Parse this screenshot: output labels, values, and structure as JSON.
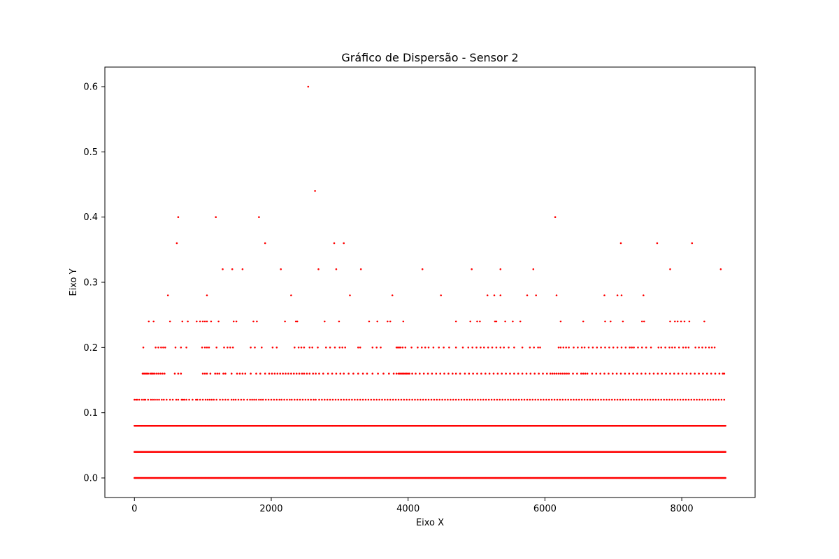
{
  "chart_data": {
    "type": "scatter",
    "title": "Gráfico de Dispersão - Sensor 2",
    "xlabel": "Eixo X",
    "ylabel": "Eixo Y",
    "xlim": [
      -432,
      9072
    ],
    "ylim": [
      -0.03,
      0.63
    ],
    "x_ticks": [
      0,
      2000,
      4000,
      6000,
      8000
    ],
    "x_tick_labels": [
      "0",
      "2000",
      "4000",
      "6000",
      "8000"
    ],
    "y_ticks": [
      0.0,
      0.1,
      0.2,
      0.3,
      0.4,
      0.5,
      0.6
    ],
    "y_tick_labels": [
      "0.0",
      "0.1",
      "0.2",
      "0.3",
      "0.4",
      "0.5",
      "0.6"
    ],
    "grid": false,
    "legend": "none",
    "marker_color": "#ff0000",
    "series": [
      {
        "levels": [
          0.0,
          0.04,
          0.08
        ],
        "x_range": [
          0,
          8640
        ]
      },
      {
        "y": 0.12,
        "x": [
          0,
          25,
          40,
          70,
          110,
          140,
          160,
          200,
          240,
          270,
          300,
          330,
          360,
          400,
          430,
          470,
          520,
          560,
          610,
          640,
          690,
          710,
          730,
          760,
          800,
          850,
          900,
          920,
          960,
          1000,
          1040,
          1070,
          1100,
          1130,
          1160,
          1200,
          1250,
          1290,
          1330,
          1370,
          1420,
          1450,
          1480,
          1520,
          1560,
          1600,
          1650,
          1690,
          1720,
          1750,
          1780,
          1820,
          1850,
          1880,
          1920,
          1960,
          2000,
          2040,
          2080,
          2120,
          2150,
          2190,
          2230,
          2270,
          2300,
          2340,
          2380,
          2420,
          2460,
          2500,
          2540,
          2580,
          2620,
          2650,
          2700,
          2740,
          2780,
          2820,
          2860,
          2900,
          2940,
          2980,
          3020,
          3060,
          3100,
          3140,
          3180,
          3220,
          3260,
          3300,
          3340,
          3380,
          3420,
          3460,
          3500,
          3540,
          3580,
          3620,
          3660,
          3700,
          3740,
          3780,
          3820,
          3860,
          3900,
          3940,
          3980,
          4020,
          4060,
          4100,
          4140,
          4180,
          4220,
          4260,
          4300,
          4340,
          4380,
          4420,
          4460,
          4500,
          4540,
          4580,
          4620,
          4660,
          4700,
          4740,
          4780,
          4820,
          4860,
          4900,
          4940,
          4980,
          5020,
          5060,
          5100,
          5140,
          5180,
          5220,
          5260,
          5300,
          5340,
          5380,
          5420,
          5460,
          5500,
          5540,
          5580,
          5620,
          5660,
          5700,
          5740,
          5780,
          5820,
          5860,
          5900,
          5940,
          5980,
          6020,
          6060,
          6100,
          6140,
          6180,
          6220,
          6260,
          6300,
          6340,
          6380,
          6420,
          6460,
          6500,
          6540,
          6580,
          6620,
          6660,
          6700,
          6740,
          6780,
          6820,
          6860,
          6900,
          6940,
          6980,
          7020,
          7060,
          7100,
          7140,
          7180,
          7220,
          7260,
          7300,
          7340,
          7380,
          7420,
          7460,
          7500,
          7540,
          7580,
          7620,
          7660,
          7700,
          7740,
          7780,
          7820,
          7860,
          7900,
          7940,
          7980,
          8020,
          8060,
          8100,
          8140,
          8180,
          8220,
          8260,
          8300,
          8340,
          8380,
          8420,
          8460,
          8500,
          8540,
          8580,
          8620
        ]
      },
      {
        "y": 0.16,
        "x": [
          120,
          140,
          160,
          180,
          200,
          230,
          250,
          270,
          290,
          320,
          350,
          380,
          410,
          440,
          590,
          640,
          680,
          1000,
          1030,
          1060,
          1110,
          1180,
          1210,
          1240,
          1300,
          1330,
          1420,
          1500,
          1540,
          1580,
          1620,
          1700,
          1780,
          1840,
          1910,
          1970,
          2010,
          2050,
          2090,
          2130,
          2170,
          2210,
          2250,
          2290,
          2330,
          2370,
          2410,
          2450,
          2480,
          2520,
          2560,
          2610,
          2650,
          2700,
          2760,
          2830,
          2890,
          2950,
          3010,
          3060,
          3130,
          3200,
          3270,
          3340,
          3400,
          3480,
          3560,
          3640,
          3720,
          3790,
          3830,
          3860,
          3880,
          3900,
          3920,
          3940,
          3960,
          3980,
          4000,
          4020,
          4060,
          4110,
          4170,
          4230,
          4290,
          4350,
          4410,
          4470,
          4530,
          4590,
          4650,
          4700,
          4760,
          4830,
          4890,
          4950,
          5010,
          5070,
          5130,
          5190,
          5250,
          5310,
          5370,
          5430,
          5490,
          5550,
          5610,
          5670,
          5730,
          5790,
          5850,
          5910,
          5970,
          6030,
          6080,
          6110,
          6140,
          6170,
          6200,
          6230,
          6260,
          6290,
          6320,
          6350,
          6410,
          6470,
          6530,
          6560,
          6590,
          6620,
          6690,
          6750,
          6810,
          6870,
          6930,
          6990,
          7050,
          7110,
          7170,
          7230,
          7290,
          7350,
          7410,
          7470,
          7530,
          7590,
          7650,
          7710,
          7770,
          7830,
          7890,
          7950,
          8010,
          8070,
          8130,
          8190,
          8250,
          8310,
          8370,
          8430,
          8490,
          8550,
          8600,
          8620
        ]
      },
      {
        "y": 0.2,
        "x": [
          130,
          310,
          350,
          390,
          420,
          450,
          600,
          680,
          760,
          990,
          1030,
          1060,
          1090,
          1200,
          1310,
          1360,
          1400,
          1440,
          1700,
          1760,
          1860,
          2020,
          2080,
          2340,
          2400,
          2440,
          2480,
          2560,
          2600,
          2680,
          2800,
          2860,
          2930,
          3000,
          3040,
          3080,
          3270,
          3300,
          3480,
          3540,
          3600,
          3830,
          3850,
          3870,
          3890,
          3920,
          3960,
          4050,
          4140,
          4200,
          4250,
          4300,
          4370,
          4450,
          4520,
          4600,
          4700,
          4800,
          4880,
          4940,
          5000,
          5060,
          5110,
          5170,
          5230,
          5290,
          5350,
          5400,
          5470,
          5550,
          5670,
          5780,
          5840,
          5900,
          5930,
          6200,
          6230,
          6270,
          6310,
          6350,
          6420,
          6480,
          6540,
          6580,
          6640,
          6700,
          6760,
          6820,
          6880,
          6940,
          7000,
          7060,
          7120,
          7180,
          7240,
          7270,
          7300,
          7360,
          7420,
          7480,
          7550,
          7660,
          7700,
          7760,
          7820,
          7860,
          7900,
          7960,
          8020,
          8060,
          8100,
          8200,
          8250,
          8300,
          8350,
          8400,
          8440,
          8480
        ]
      },
      {
        "y": 0.24,
        "x": [
          210,
          280,
          520,
          700,
          780,
          910,
          960,
          1000,
          1030,
          1060,
          1120,
          1230,
          1450,
          1490,
          1740,
          1790,
          2200,
          2360,
          2380,
          2780,
          2990,
          3430,
          3550,
          3700,
          3740,
          3930,
          4700,
          4910,
          5010,
          5050,
          5270,
          5290,
          5420,
          5530,
          5640,
          6230,
          6560,
          6880,
          6960,
          7140,
          7420,
          7450,
          7830,
          7900,
          7940,
          7990,
          8040,
          8110,
          8330
        ]
      },
      {
        "y": 0.28,
        "x": [
          490,
          1060,
          2290,
          3150,
          3770,
          4480,
          5160,
          5260,
          5350,
          5740,
          5870,
          6170,
          6870,
          7060,
          7120,
          7440
        ]
      },
      {
        "y": 0.32,
        "x": [
          1290,
          1430,
          1580,
          2140,
          2690,
          2950,
          3310,
          4210,
          4930,
          5350,
          5830,
          7830,
          8570
        ]
      },
      {
        "y": 0.36,
        "x": [
          620,
          1910,
          2920,
          3060,
          7110,
          7640,
          8150
        ]
      },
      {
        "y": 0.4,
        "x": [
          640,
          1190,
          1820,
          6150
        ]
      },
      {
        "y": 0.44,
        "x": [
          2640
        ]
      },
      {
        "y": 0.6,
        "x": [
          2540
        ]
      }
    ]
  }
}
